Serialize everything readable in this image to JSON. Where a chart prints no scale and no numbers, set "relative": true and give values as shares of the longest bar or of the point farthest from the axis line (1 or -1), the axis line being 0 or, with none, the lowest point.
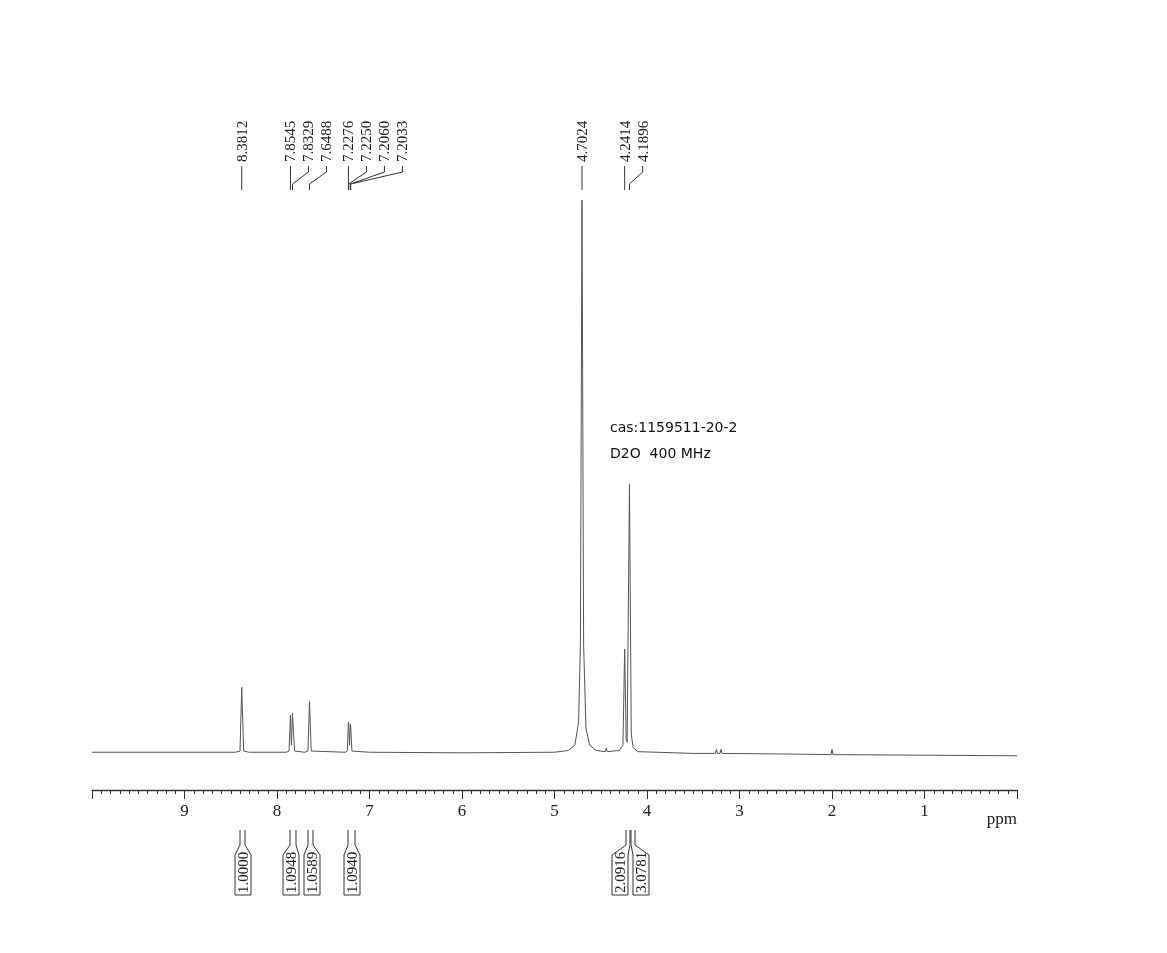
{
  "chart_data": {
    "type": "line",
    "relative": true,
    "xlabel": "ppm",
    "xlim": [
      10,
      0
    ],
    "xticks": [
      9,
      8,
      7,
      6,
      5,
      4,
      3,
      2,
      1
    ],
    "x": [
      10,
      8.45,
      8.4,
      8.3812,
      8.36,
      8.3,
      7.9,
      7.87,
      7.8545,
      7.844,
      7.8329,
      7.81,
      7.7,
      7.665,
      7.6488,
      7.63,
      7.26,
      7.24,
      7.2276,
      7.225,
      7.216,
      7.206,
      7.2033,
      7.19,
      7.0,
      6.0,
      5.0,
      4.85,
      4.78,
      4.74,
      4.72,
      4.7024,
      4.685,
      4.66,
      4.62,
      4.55,
      4.45,
      4.44,
      4.43,
      4.3,
      4.26,
      4.2414,
      4.225,
      4.215,
      4.1896,
      4.17,
      4.15,
      4.1,
      3.5,
      3.26,
      3.25,
      3.24,
      3.21,
      3.2,
      3.19,
      2.5,
      2.01,
      2.0,
      1.99,
      1.0,
      0
    ],
    "values": [
      0.064,
      0.064,
      0.066,
      0.174,
      0.066,
      0.064,
      0.064,
      0.066,
      0.127,
      0.076,
      0.13,
      0.066,
      0.064,
      0.066,
      0.15,
      0.066,
      0.064,
      0.066,
      0.115,
      0.112,
      0.076,
      0.112,
      0.109,
      0.066,
      0.064,
      0.063,
      0.064,
      0.067,
      0.076,
      0.114,
      0.246,
      1.0,
      0.246,
      0.105,
      0.076,
      0.067,
      0.065,
      0.071,
      0.065,
      0.067,
      0.076,
      0.239,
      0.086,
      0.081,
      0.518,
      0.095,
      0.072,
      0.065,
      0.062,
      0.062,
      0.069,
      0.062,
      0.062,
      0.069,
      0.062,
      0.061,
      0.06,
      0.069,
      0.06,
      0.059,
      0.058
    ],
    "color": "#555555",
    "line_style": "solid",
    "marker": "none",
    "grid": false,
    "annotations": [
      {
        "text": "8.3812",
        "x": 8.3812
      },
      {
        "text": "7.8545",
        "x": 7.8545
      },
      {
        "text": "7.8329",
        "x": 7.8329
      },
      {
        "text": "7.6488",
        "x": 7.6488
      },
      {
        "text": "7.2276",
        "x": 7.2276
      },
      {
        "text": "7.2250",
        "x": 7.225
      },
      {
        "text": "7.2060",
        "x": 7.206
      },
      {
        "text": "7.2033",
        "x": 7.2033
      },
      {
        "text": "4.7024",
        "x": 4.7024
      },
      {
        "text": "4.2414",
        "x": 4.2414
      },
      {
        "text": "4.1896",
        "x": 4.1896
      },
      "cas:1159511-20-2",
      "D2O  400 MHz",
      "1.0000",
      "1.0948",
      "1.0589",
      "1.0940",
      "2.0916",
      "3.0781"
    ]
  }
}
